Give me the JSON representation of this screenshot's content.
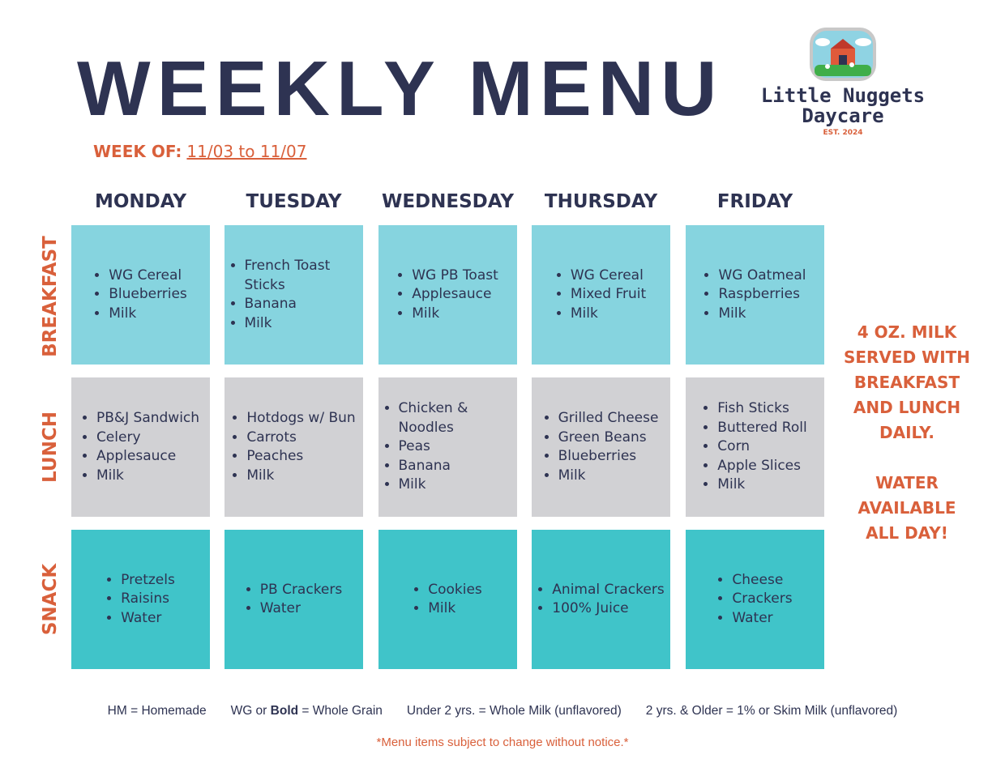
{
  "title": "WEEKLY MENU",
  "week_of": {
    "label": "WEEK OF:",
    "dates": "11/03 to 11/07"
  },
  "logo": {
    "line1": "Little Nuggets",
    "line2": "Daycare",
    "est": "EST. 2024"
  },
  "days": [
    "MONDAY",
    "TUESDAY",
    "WEDNESDAY",
    "THURSDAY",
    "FRIDAY"
  ],
  "meals": [
    "BREAKFAST",
    "LUNCH",
    "SNACK"
  ],
  "menu": {
    "breakfast": [
      [
        "WG Cereal",
        "Blueberries",
        "Milk"
      ],
      [
        "French Toast Sticks",
        "Banana",
        "Milk"
      ],
      [
        "WG PB Toast",
        "Applesauce",
        "Milk"
      ],
      [
        "WG Cereal",
        "Mixed Fruit",
        "Milk"
      ],
      [
        "WG Oatmeal",
        "Raspberries",
        "Milk"
      ]
    ],
    "lunch": [
      [
        "PB&J Sandwich",
        "Celery",
        "Applesauce",
        "Milk"
      ],
      [
        "Hotdogs w/ Bun",
        "Carrots",
        "Peaches",
        "Milk"
      ],
      [
        "Chicken & Noodles",
        "Peas",
        "Banana",
        "Milk"
      ],
      [
        "Grilled Cheese",
        "Green Beans",
        "Blueberries",
        "Milk"
      ],
      [
        "Fish Sticks",
        "Buttered Roll",
        "Corn",
        "Apple Slices",
        "Milk"
      ]
    ],
    "snack": [
      [
        "Pretzels",
        "Raisins",
        "Water"
      ],
      [
        "PB Crackers",
        "Water"
      ],
      [
        "Cookies",
        "Milk"
      ],
      [
        "Animal Crackers",
        "100% Juice"
      ],
      [
        "Cheese",
        "Crackers",
        "Water"
      ]
    ]
  },
  "side_note": {
    "milk": "4 OZ. MILK SERVED WITH BREAKFAST AND LUNCH DAILY.",
    "water": "WATER AVAILABLE ALL DAY!"
  },
  "legend": {
    "hm": "HM = Homemade",
    "wg_prefix": "WG or ",
    "wg_bold": "Bold",
    "wg_suffix": " = Whole Grain",
    "under2": "Under 2 yrs. = Whole Milk (unflavored)",
    "over2": "2 yrs. & Older = 1% or Skim Milk (unflavored)"
  },
  "disclaimer": "*Menu items subject to change without notice.*",
  "colors": {
    "navy": "#2e3352",
    "orange": "#d9603b",
    "breakfast": "#86d4df",
    "lunch": "#d1d1d4",
    "snack": "#40c4c9"
  }
}
